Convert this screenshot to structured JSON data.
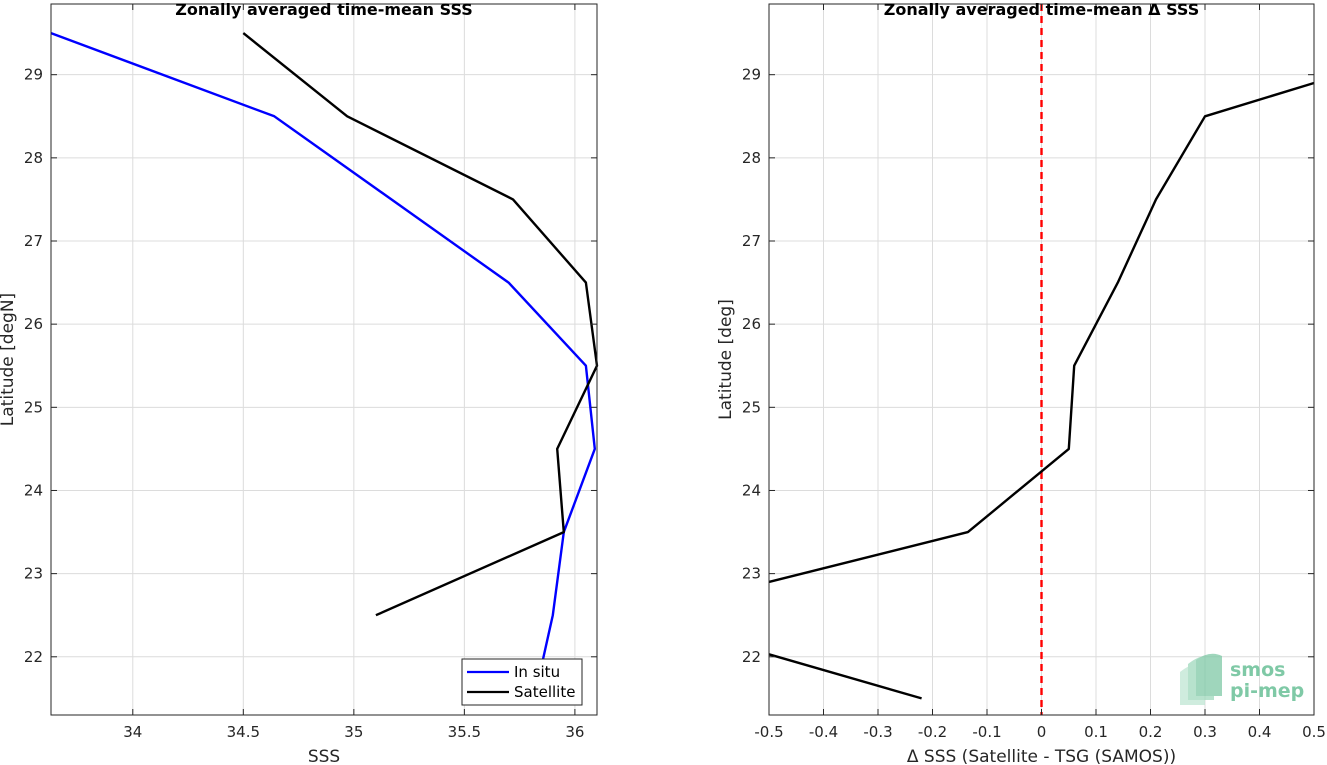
{
  "chart_data": [
    {
      "type": "line",
      "title": "Zonally averaged time-mean SSS",
      "xlabel": "SSS",
      "ylabel": "Latitude [degN]",
      "xlim": [
        33.63,
        36.1
      ],
      "ylim": [
        21.3,
        29.85
      ],
      "xticks": [
        "34",
        "34.5",
        "35",
        "35.5",
        "36"
      ],
      "xtick_values": [
        34,
        34.5,
        35,
        35.5,
        36
      ],
      "yticks": [
        "22",
        "23",
        "24",
        "25",
        "26",
        "27",
        "28",
        "29"
      ],
      "ytick_values": [
        22,
        23,
        24,
        25,
        26,
        27,
        28,
        29
      ],
      "grid": true,
      "legend_position": "bottom-right",
      "series": [
        {
          "name": "In situ",
          "color": "#0000ff",
          "points": [
            [
              33.63,
              29.5
            ],
            [
              34.64,
              28.5
            ],
            [
              35.7,
              26.5
            ],
            [
              36.05,
              25.5
            ],
            [
              36.09,
              24.5
            ],
            [
              35.95,
              23.5
            ],
            [
              35.9,
              22.5
            ],
            [
              35.85,
              21.9
            ]
          ]
        },
        {
          "name": "Satellite",
          "color": "#000000",
          "points": [
            [
              34.5,
              29.5
            ],
            [
              34.97,
              28.5
            ],
            [
              35.72,
              27.5
            ],
            [
              36.05,
              26.5
            ],
            [
              36.1,
              25.5
            ],
            [
              35.92,
              24.5
            ],
            [
              35.95,
              23.5
            ],
            [
              35.1,
              22.5
            ]
          ]
        }
      ]
    },
    {
      "type": "line",
      "title": "Zonally averaged time-mean Δ SSS",
      "xlabel": "Δ SSS (Satellite - TSG (SAMOS))",
      "ylabel": "Latitude [deg]",
      "xlim": [
        -0.5,
        0.5
      ],
      "ylim": [
        21.3,
        29.85
      ],
      "xticks": [
        "-0.5",
        "-0.4",
        "-0.3",
        "-0.2",
        "-0.1",
        "0",
        "0.1",
        "0.2",
        "0.3",
        "0.4",
        "0.5"
      ],
      "xtick_values": [
        -0.5,
        -0.4,
        -0.3,
        -0.2,
        -0.1,
        0,
        0.1,
        0.2,
        0.3,
        0.4,
        0.5
      ],
      "yticks": [
        "22",
        "23",
        "24",
        "25",
        "26",
        "27",
        "28",
        "29"
      ],
      "ytick_values": [
        22,
        23,
        24,
        25,
        26,
        27,
        28,
        29
      ],
      "grid": true,
      "reference_line": {
        "x": 0,
        "color": "#ff0000"
      },
      "series": [
        {
          "color": "#000000",
          "points": [
            [
              0.5,
              28.9
            ],
            [
              0.3,
              28.5
            ],
            [
              0.21,
              27.5
            ],
            [
              0.14,
              26.5
            ],
            [
              0.06,
              25.5
            ],
            [
              0.05,
              24.5
            ],
            [
              -0.135,
              23.5
            ],
            [
              -0.5,
              22.9
            ]
          ]
        },
        {
          "color": "#000000",
          "points": [
            [
              -0.5,
              22.03
            ],
            [
              -0.22,
              21.5
            ]
          ]
        }
      ]
    }
  ],
  "logo": {
    "line1": "smos",
    "line2": "pi-mep",
    "color": "#7fc9a6"
  }
}
